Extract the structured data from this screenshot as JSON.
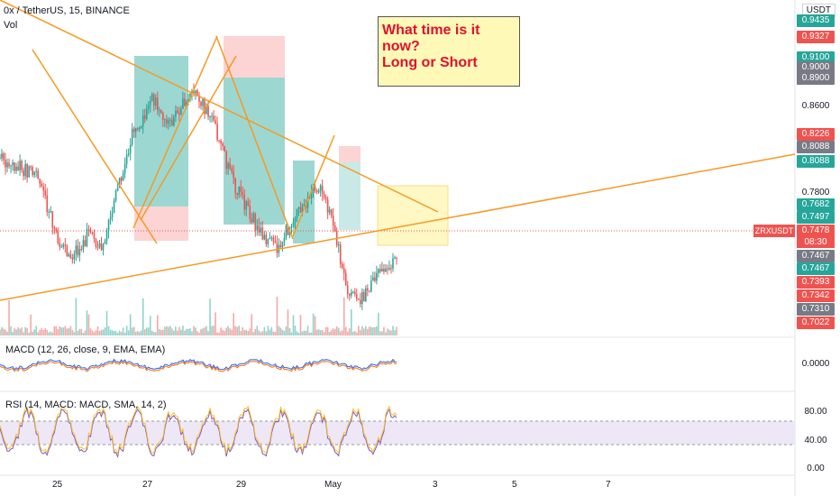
{
  "header": {
    "symbol_title": "0x / TetherUS, 15, BINANCE",
    "vol_label": "Vol"
  },
  "scale_mode": "USDT",
  "note": {
    "line1": "What time is it now?",
    "line2": "Long or Short"
  },
  "macd_label": "MACD (12, 26, close, 9, EMA, EMA)",
  "rsi_label": "RSI (14, MACD: MACD, SMA, 14, 2)",
  "symbol_badge": "ZRXUSDT",
  "countdown": "08:30",
  "price_labels": [
    {
      "value": "0.9435",
      "color": "#26a69a"
    },
    {
      "value": "0.9327",
      "color": "#ef5350"
    },
    {
      "value": "0.9100",
      "color": "#26a69a"
    },
    {
      "value": "0.9000",
      "color": "#787b86"
    },
    {
      "value": "0.8900",
      "color": "#787b86"
    },
    {
      "value": "0.8226",
      "color": "#ef5350"
    },
    {
      "value": "0.8088",
      "color": "#787b86"
    },
    {
      "value": "0.8088",
      "color": "#26a69a"
    },
    {
      "value": "0.7682",
      "color": "#26a69a"
    },
    {
      "value": "0.7497",
      "color": "#26a69a"
    },
    {
      "value": "0.7478",
      "color": "#ef5350"
    },
    {
      "value": "0.7467",
      "color": "#787b86"
    },
    {
      "value": "0.7467",
      "color": "#26a69a"
    },
    {
      "value": "0.7393",
      "color": "#ef5350"
    },
    {
      "value": "0.7342",
      "color": "#ef5350"
    },
    {
      "value": "0.7310",
      "color": "#787b86"
    },
    {
      "value": "0.7022",
      "color": "#ef5350"
    }
  ],
  "axis_price_ticks": [
    "0.8600",
    "0.7800"
  ],
  "macd_ticks": [
    "0.0000"
  ],
  "rsi_ticks": [
    "80.00",
    "40.00",
    "0.00"
  ],
  "x_ticks": [
    "25",
    "27",
    "29",
    "May",
    "3",
    "5",
    "7"
  ],
  "chart_data": {
    "type": "candlestick",
    "title": "0x / TetherUS, 15, BINANCE",
    "x_ticks": [
      "25",
      "27",
      "29",
      "May",
      "3",
      "5",
      "7"
    ],
    "y_ticks": [
      0.86,
      0.78
    ],
    "ylim": [
      0.69,
      0.96
    ],
    "last_price": 0.7478,
    "panels": [
      "price",
      "volume",
      "MACD",
      "RSI"
    ],
    "macd_ticks": [
      0.0
    ],
    "rsi_ticks": [
      80,
      40,
      0
    ],
    "rsi_band": [
      33,
      67
    ],
    "price_path": [
      [
        0.0,
        0.832
      ],
      [
        0.9,
        0.818
      ],
      [
        1.3,
        0.77
      ],
      [
        1.7,
        0.752
      ],
      [
        2.1,
        0.772
      ],
      [
        2.4,
        0.757
      ],
      [
        2.7,
        0.802
      ],
      [
        3.1,
        0.85
      ],
      [
        3.6,
        0.88
      ],
      [
        4.0,
        0.86
      ],
      [
        4.5,
        0.89
      ],
      [
        5.0,
        0.86
      ],
      [
        5.5,
        0.81
      ],
      [
        6.0,
        0.778
      ],
      [
        6.5,
        0.758
      ],
      [
        6.9,
        0.786
      ],
      [
        7.5,
        0.81
      ],
      [
        7.8,
        0.782
      ],
      [
        8.1,
        0.728
      ],
      [
        8.5,
        0.718
      ],
      [
        8.9,
        0.74
      ],
      [
        9.3,
        0.748
      ]
    ]
  }
}
